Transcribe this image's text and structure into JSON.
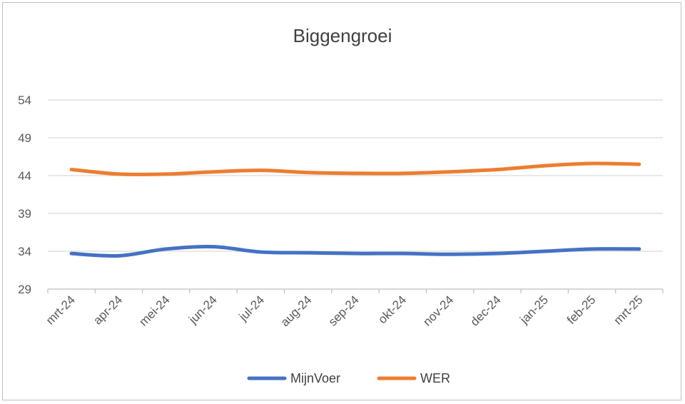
{
  "chart_data": {
    "type": "line",
    "title": "Biggengroei",
    "xlabel": "",
    "ylabel": "",
    "categories": [
      "mrt-24",
      "apr-24",
      "mei-24",
      "jun-24",
      "jul-24",
      "aug-24",
      "sep-24",
      "okt-24",
      "nov-24",
      "dec-24",
      "jan-25",
      "feb-25",
      "mrt-25"
    ],
    "y_ticks": [
      29,
      34,
      39,
      44,
      49,
      54
    ],
    "ylim": [
      29,
      54
    ],
    "grid": true,
    "legend_position": "bottom",
    "series": [
      {
        "name": "MijnVoer",
        "color": "#4472c4",
        "values": [
          33.7,
          33.4,
          34.3,
          34.6,
          33.9,
          33.8,
          33.7,
          33.7,
          33.6,
          33.7,
          34.0,
          34.3,
          34.3
        ]
      },
      {
        "name": "WER",
        "color": "#ed7d31",
        "values": [
          44.8,
          44.2,
          44.2,
          44.5,
          44.7,
          44.4,
          44.3,
          44.3,
          44.5,
          44.8,
          45.3,
          45.6,
          45.5
        ]
      }
    ]
  }
}
